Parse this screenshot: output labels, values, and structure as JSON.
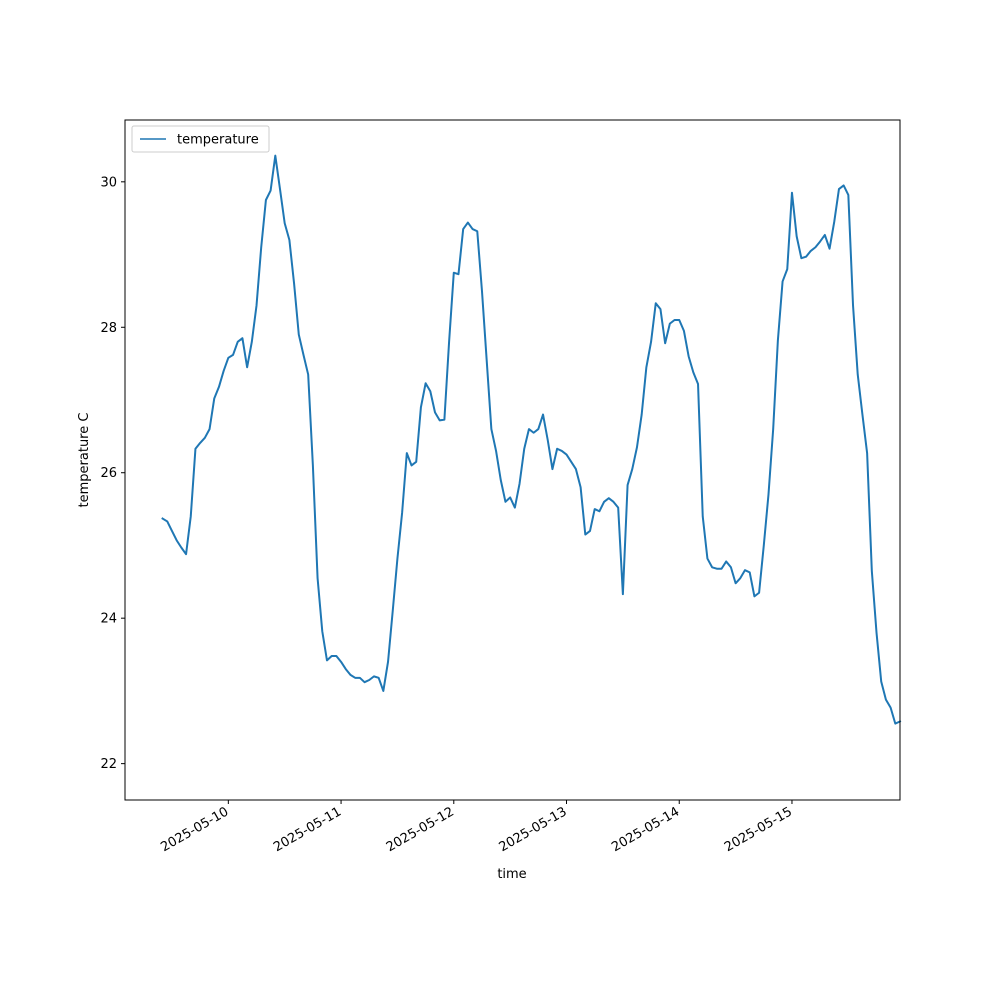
{
  "chart_data": {
    "type": "line",
    "title": "",
    "xlabel": "time",
    "ylabel": "temperature C",
    "x_ticks": [
      "2025-05-10",
      "2025-05-11",
      "2025-05-12",
      "2025-05-13",
      "2025-05-14",
      "2025-05-15"
    ],
    "y_ticks": [
      22,
      24,
      26,
      28,
      30
    ],
    "xlim": [
      "2025-05-09T02:00",
      "2025-05-15T23:00"
    ],
    "ylim": [
      21.5,
      30.85
    ],
    "grid": false,
    "legend": {
      "position": "top-left",
      "entries": [
        "temperature"
      ]
    },
    "series": [
      {
        "name": "temperature",
        "color": "#1f77b4",
        "points": [
          [
            "2025-05-09T10:00",
            25.37
          ],
          [
            "2025-05-09T11:00",
            25.33
          ],
          [
            "2025-05-09T12:00",
            25.2
          ],
          [
            "2025-05-09T13:00",
            25.07
          ],
          [
            "2025-05-09T14:00",
            24.97
          ],
          [
            "2025-05-09T15:00",
            24.88
          ],
          [
            "2025-05-09T16:00",
            25.4
          ],
          [
            "2025-05-09T17:00",
            26.33
          ],
          [
            "2025-05-09T18:00",
            26.41
          ],
          [
            "2025-05-09T19:00",
            26.48
          ],
          [
            "2025-05-09T20:00",
            26.6
          ],
          [
            "2025-05-09T21:00",
            27.02
          ],
          [
            "2025-05-09T22:00",
            27.18
          ],
          [
            "2025-05-09T23:00",
            27.4
          ],
          [
            "2025-05-10T00:00",
            27.58
          ],
          [
            "2025-05-10T01:00",
            27.62
          ],
          [
            "2025-05-10T02:00",
            27.8
          ],
          [
            "2025-05-10T03:00",
            27.85
          ],
          [
            "2025-05-10T04:00",
            27.45
          ],
          [
            "2025-05-10T05:00",
            27.8
          ],
          [
            "2025-05-10T06:00",
            28.3
          ],
          [
            "2025-05-10T07:00",
            29.1
          ],
          [
            "2025-05-10T08:00",
            29.75
          ],
          [
            "2025-05-10T09:00",
            29.88
          ],
          [
            "2025-05-10T10:00",
            30.36
          ],
          [
            "2025-05-10T11:00",
            29.9
          ],
          [
            "2025-05-10T12:00",
            29.43
          ],
          [
            "2025-05-10T13:00",
            29.2
          ],
          [
            "2025-05-10T14:00",
            28.6
          ],
          [
            "2025-05-10T15:00",
            27.9
          ],
          [
            "2025-05-10T16:00",
            27.62
          ],
          [
            "2025-05-10T17:00",
            27.35
          ],
          [
            "2025-05-10T18:00",
            26.1
          ],
          [
            "2025-05-10T19:00",
            24.55
          ],
          [
            "2025-05-10T20:00",
            23.82
          ],
          [
            "2025-05-10T21:00",
            23.42
          ],
          [
            "2025-05-10T22:00",
            23.48
          ],
          [
            "2025-05-10T23:00",
            23.48
          ],
          [
            "2025-05-11T00:00",
            23.4
          ],
          [
            "2025-05-11T01:00",
            23.3
          ],
          [
            "2025-05-11T02:00",
            23.22
          ],
          [
            "2025-05-11T03:00",
            23.18
          ],
          [
            "2025-05-11T04:00",
            23.18
          ],
          [
            "2025-05-11T05:00",
            23.12
          ],
          [
            "2025-05-11T06:00",
            23.15
          ],
          [
            "2025-05-11T07:00",
            23.2
          ],
          [
            "2025-05-11T08:00",
            23.18
          ],
          [
            "2025-05-11T09:00",
            23.0
          ],
          [
            "2025-05-11T10:00",
            23.4
          ],
          [
            "2025-05-11T11:00",
            24.1
          ],
          [
            "2025-05-11T12:00",
            24.82
          ],
          [
            "2025-05-11T13:00",
            25.45
          ],
          [
            "2025-05-11T14:00",
            26.27
          ],
          [
            "2025-05-11T15:00",
            26.1
          ],
          [
            "2025-05-11T16:00",
            26.15
          ],
          [
            "2025-05-11T17:00",
            26.9
          ],
          [
            "2025-05-11T18:00",
            27.23
          ],
          [
            "2025-05-11T19:00",
            27.12
          ],
          [
            "2025-05-11T20:00",
            26.83
          ],
          [
            "2025-05-11T21:00",
            26.72
          ],
          [
            "2025-05-11T22:00",
            26.73
          ],
          [
            "2025-05-11T23:00",
            27.8
          ],
          [
            "2025-05-12T00:00",
            28.75
          ],
          [
            "2025-05-12T01:00",
            28.73
          ],
          [
            "2025-05-12T02:00",
            29.35
          ],
          [
            "2025-05-12T03:00",
            29.44
          ],
          [
            "2025-05-12T04:00",
            29.35
          ],
          [
            "2025-05-12T05:00",
            29.32
          ],
          [
            "2025-05-12T06:00",
            28.5
          ],
          [
            "2025-05-12T07:00",
            27.55
          ],
          [
            "2025-05-12T08:00",
            26.6
          ],
          [
            "2025-05-12T09:00",
            26.3
          ],
          [
            "2025-05-12T10:00",
            25.9
          ],
          [
            "2025-05-12T11:00",
            25.6
          ],
          [
            "2025-05-12T12:00",
            25.66
          ],
          [
            "2025-05-12T13:00",
            25.52
          ],
          [
            "2025-05-12T14:00",
            25.85
          ],
          [
            "2025-05-12T15:00",
            26.33
          ],
          [
            "2025-05-12T16:00",
            26.6
          ],
          [
            "2025-05-12T17:00",
            26.55
          ],
          [
            "2025-05-12T18:00",
            26.6
          ],
          [
            "2025-05-12T19:00",
            26.8
          ],
          [
            "2025-05-12T20:00",
            26.45
          ],
          [
            "2025-05-12T21:00",
            26.05
          ],
          [
            "2025-05-12T22:00",
            26.33
          ],
          [
            "2025-05-12T23:00",
            26.3
          ],
          [
            "2025-05-13T00:00",
            26.25
          ],
          [
            "2025-05-13T01:00",
            26.15
          ],
          [
            "2025-05-13T02:00",
            26.05
          ],
          [
            "2025-05-13T03:00",
            25.8
          ],
          [
            "2025-05-13T04:00",
            25.15
          ],
          [
            "2025-05-13T05:00",
            25.2
          ],
          [
            "2025-05-13T06:00",
            25.5
          ],
          [
            "2025-05-13T07:00",
            25.47
          ],
          [
            "2025-05-13T08:00",
            25.6
          ],
          [
            "2025-05-13T09:00",
            25.65
          ],
          [
            "2025-05-13T10:00",
            25.6
          ],
          [
            "2025-05-13T11:00",
            25.52
          ],
          [
            "2025-05-13T12:00",
            24.33
          ],
          [
            "2025-05-13T13:00",
            25.83
          ],
          [
            "2025-05-13T14:00",
            26.05
          ],
          [
            "2025-05-13T15:00",
            26.35
          ],
          [
            "2025-05-13T16:00",
            26.8
          ],
          [
            "2025-05-13T17:00",
            27.45
          ],
          [
            "2025-05-13T18:00",
            27.8
          ],
          [
            "2025-05-13T19:00",
            28.33
          ],
          [
            "2025-05-13T20:00",
            28.25
          ],
          [
            "2025-05-13T21:00",
            27.78
          ],
          [
            "2025-05-13T22:00",
            28.05
          ],
          [
            "2025-05-13T23:00",
            28.1
          ],
          [
            "2025-05-14T00:00",
            28.1
          ],
          [
            "2025-05-14T01:00",
            27.95
          ],
          [
            "2025-05-14T02:00",
            27.6
          ],
          [
            "2025-05-14T03:00",
            27.38
          ],
          [
            "2025-05-14T04:00",
            27.22
          ],
          [
            "2025-05-14T05:00",
            25.4
          ],
          [
            "2025-05-14T06:00",
            24.82
          ],
          [
            "2025-05-14T07:00",
            24.7
          ],
          [
            "2025-05-14T08:00",
            24.68
          ],
          [
            "2025-05-14T09:00",
            24.68
          ],
          [
            "2025-05-14T10:00",
            24.78
          ],
          [
            "2025-05-14T11:00",
            24.7
          ],
          [
            "2025-05-14T12:00",
            24.48
          ],
          [
            "2025-05-14T13:00",
            24.55
          ],
          [
            "2025-05-14T14:00",
            24.66
          ],
          [
            "2025-05-14T15:00",
            24.63
          ],
          [
            "2025-05-14T16:00",
            24.3
          ],
          [
            "2025-05-14T17:00",
            24.35
          ],
          [
            "2025-05-14T18:00",
            25.0
          ],
          [
            "2025-05-14T19:00",
            25.7
          ],
          [
            "2025-05-14T20:00",
            26.6
          ],
          [
            "2025-05-14T21:00",
            27.82
          ],
          [
            "2025-05-14T22:00",
            28.63
          ],
          [
            "2025-05-14T23:00",
            28.8
          ],
          [
            "2025-05-15T00:00",
            29.85
          ],
          [
            "2025-05-15T01:00",
            29.25
          ],
          [
            "2025-05-15T02:00",
            28.95
          ],
          [
            "2025-05-15T03:00",
            28.97
          ],
          [
            "2025-05-15T04:00",
            29.05
          ],
          [
            "2025-05-15T05:00",
            29.1
          ],
          [
            "2025-05-15T06:00",
            29.18
          ],
          [
            "2025-05-15T07:00",
            29.27
          ],
          [
            "2025-05-15T08:00",
            29.08
          ],
          [
            "2025-05-15T09:00",
            29.45
          ],
          [
            "2025-05-15T10:00",
            29.9
          ],
          [
            "2025-05-15T11:00",
            29.95
          ],
          [
            "2025-05-15T12:00",
            29.82
          ],
          [
            "2025-05-15T13:00",
            28.3
          ],
          [
            "2025-05-15T14:00",
            27.35
          ],
          [
            "2025-05-15T15:00",
            26.8
          ],
          [
            "2025-05-15T16:00",
            26.27
          ],
          [
            "2025-05-15T17:00",
            24.65
          ],
          [
            "2025-05-15T18:00",
            23.8
          ],
          [
            "2025-05-15T19:00",
            23.13
          ],
          [
            "2025-05-15T20:00",
            22.88
          ],
          [
            "2025-05-15T21:00",
            22.77
          ],
          [
            "2025-05-15T22:00",
            22.55
          ],
          [
            "2025-05-15T23:00",
            22.58
          ]
        ]
      }
    ]
  }
}
